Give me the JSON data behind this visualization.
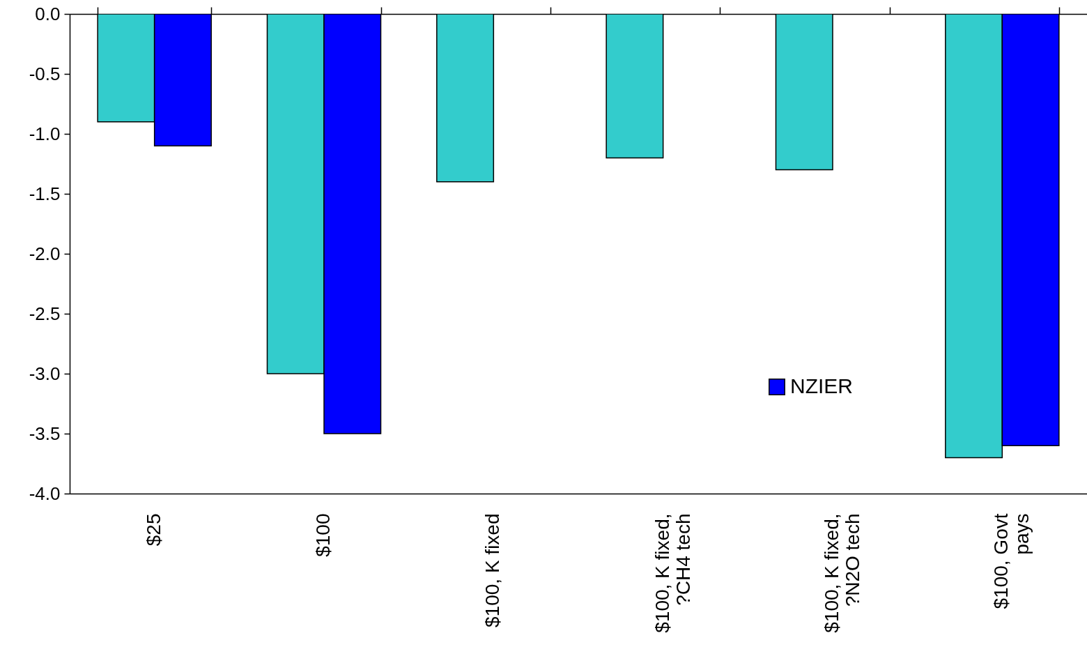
{
  "chart_data": {
    "type": "bar",
    "categories": [
      "$25",
      "$100",
      "$100, K fixed",
      "$100, K fixed,\n?CH4 tech",
      "$100, K fixed,\n?N2O tech",
      "$100, Govt\npays"
    ],
    "series": [
      {
        "color": "#33cccc",
        "values": [
          -0.9,
          -3.0,
          -1.4,
          -1.2,
          -1.3,
          -3.7
        ]
      },
      {
        "name": "NZIER",
        "color": "#0000ff",
        "values": [
          -1.1,
          -3.5,
          null,
          null,
          null,
          -3.6
        ]
      }
    ],
    "ylim": [
      -4,
      0
    ],
    "yticks": [
      {
        "value": -4,
        "label": "-4.0"
      },
      {
        "value": -3.5,
        "label": "-3.5"
      },
      {
        "value": -3,
        "label": "-3.0"
      },
      {
        "value": -2.5,
        "label": "-2.5"
      },
      {
        "value": -2,
        "label": "-2.0"
      },
      {
        "value": -1.5,
        "label": "-1.5"
      },
      {
        "value": -1,
        "label": "-1.0"
      },
      {
        "value": -0.5,
        "label": "-0.5"
      },
      {
        "value": 0,
        "label": "0.0"
      }
    ],
    "grid": false,
    "legend": "right"
  }
}
